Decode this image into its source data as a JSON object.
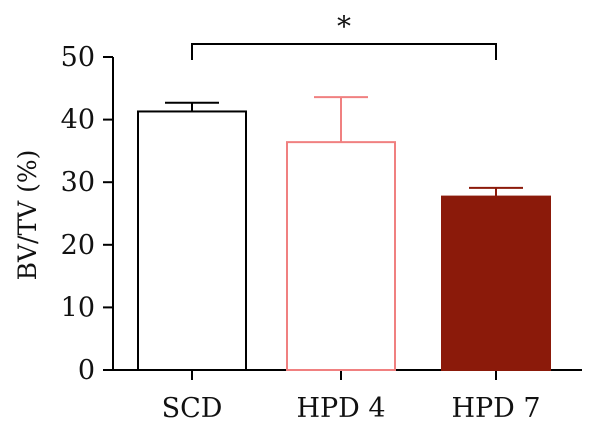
{
  "chart_data": {
    "type": "bar",
    "title": "",
    "xlabel": "",
    "ylabel": "BV/TV (%)",
    "ylim": [
      0,
      50
    ],
    "yticks": [
      0,
      10,
      20,
      30,
      40,
      50
    ],
    "grid": false,
    "categories": [
      "SCD",
      "HPD 4",
      "HPD 7"
    ],
    "values": [
      41.3,
      36.4,
      27.7
    ],
    "error_upper": [
      42.7,
      43.6,
      29.1
    ],
    "bar_styles": [
      {
        "fill": "#ffffff",
        "stroke": "#000000"
      },
      {
        "fill": "#ffffff",
        "stroke": "#f08080"
      },
      {
        "fill": "#8b1a0a",
        "stroke": "#8b1a0a"
      }
    ],
    "significance": [
      {
        "from": "SCD",
        "to": "HPD 7",
        "label": "*"
      }
    ]
  }
}
